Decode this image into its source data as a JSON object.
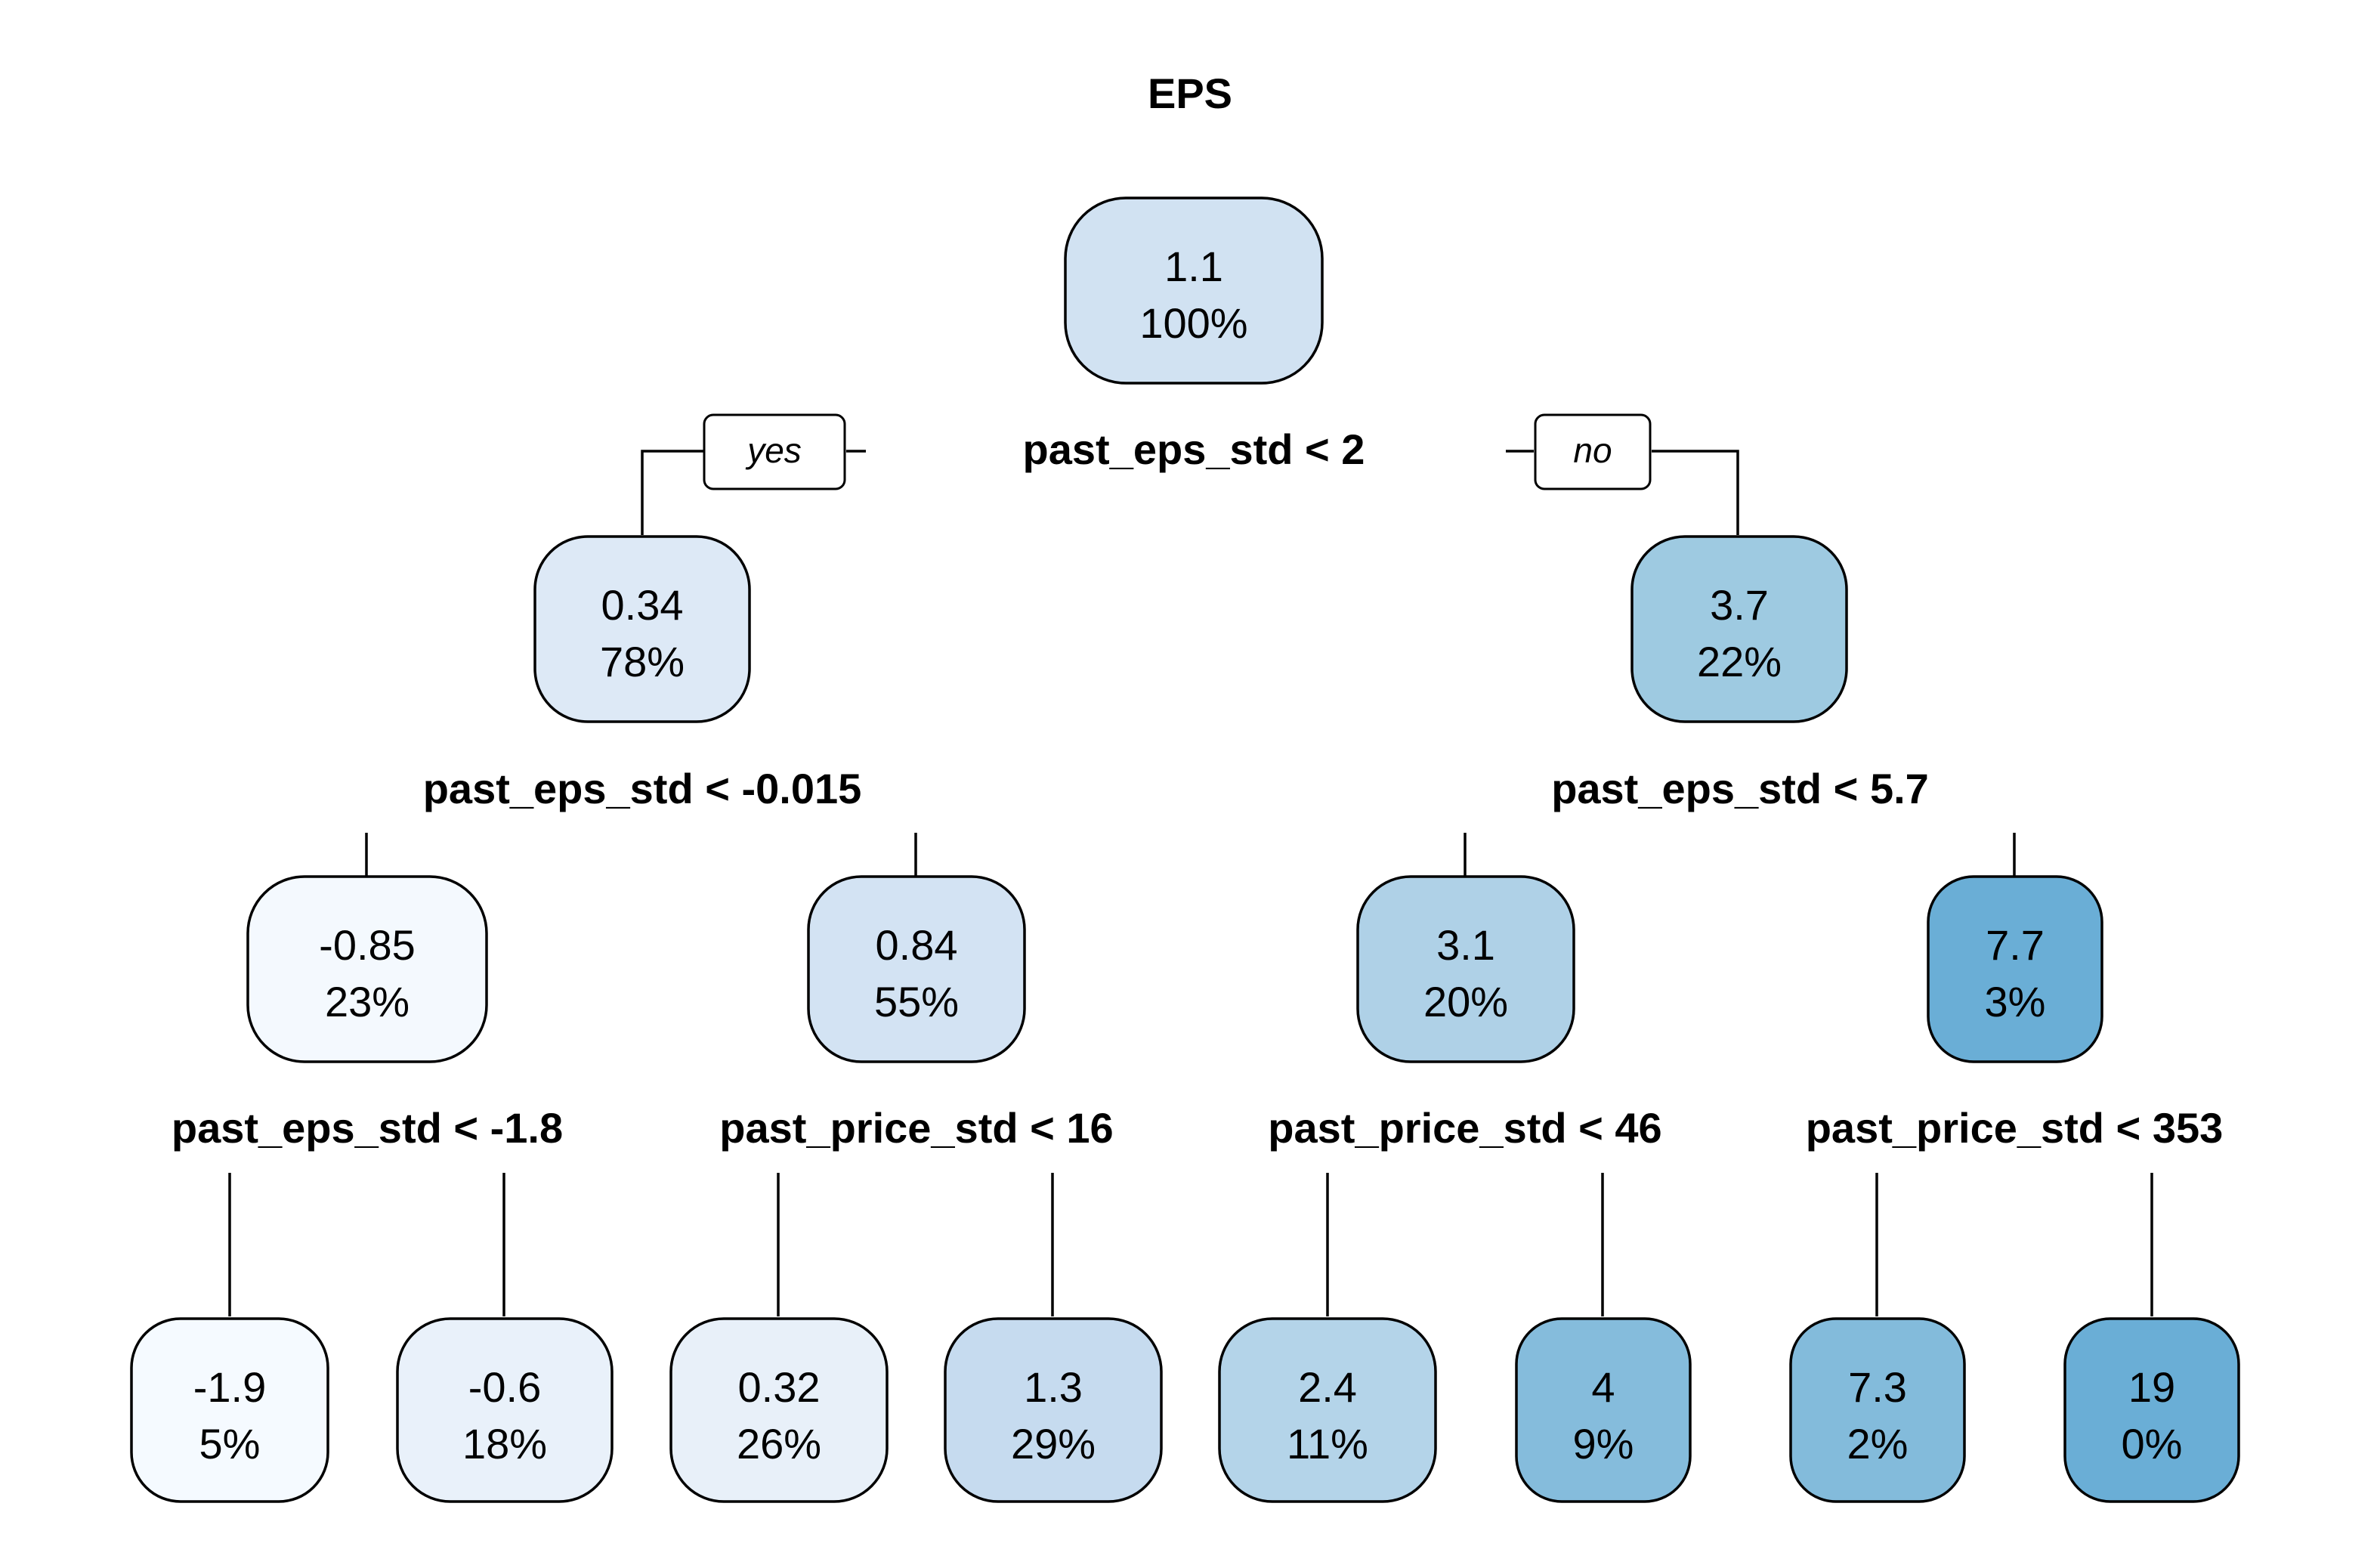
{
  "title": "EPS",
  "nodes": {
    "n1": {
      "value": "1.1",
      "pct": "100%",
      "fill": "#d1e2f2"
    },
    "n2": {
      "value": "0.34",
      "pct": "78%",
      "fill": "#dde9f6"
    },
    "n3": {
      "value": "3.7",
      "pct": "22%",
      "fill": "#9ecae1"
    },
    "n4": {
      "value": "-0.85",
      "pct": "23%",
      "fill": "#f4f9fe"
    },
    "n5": {
      "value": "0.84",
      "pct": "55%",
      "fill": "#d3e3f3"
    },
    "n6": {
      "value": "3.1",
      "pct": "20%",
      "fill": "#afd1e7"
    },
    "n7": {
      "value": "7.7",
      "pct": "3%",
      "fill": "#6aaed6"
    },
    "n8": {
      "value": "-1.9",
      "pct": "5%",
      "fill": "#f5faff"
    },
    "n9": {
      "value": "-0.6",
      "pct": "18%",
      "fill": "#e9f1fa"
    },
    "n10": {
      "value": "0.32",
      "pct": "26%",
      "fill": "#e8f0f9"
    },
    "n11": {
      "value": "1.3",
      "pct": "29%",
      "fill": "#c6dbef"
    },
    "n12": {
      "value": "2.4",
      "pct": "11%",
      "fill": "#b4d4e9"
    },
    "n13": {
      "value": "4",
      "pct": "9%",
      "fill": "#85bcdc"
    },
    "n14": {
      "value": "7.3",
      "pct": "2%",
      "fill": "#83bbdb"
    },
    "n15": {
      "value": "19",
      "pct": "0%",
      "fill": "#6aaed6"
    }
  },
  "splits": {
    "s1": "past_eps_std < 2",
    "s2": "past_eps_std < -0.015",
    "s3": "past_eps_std < 5.7",
    "s4": "past_eps_std < -1.8",
    "s5": "past_price_std < 16",
    "s6": "past_price_std < 46",
    "s7": "past_price_std < 353"
  },
  "branch_labels": {
    "yes": "yes",
    "no": "no"
  }
}
